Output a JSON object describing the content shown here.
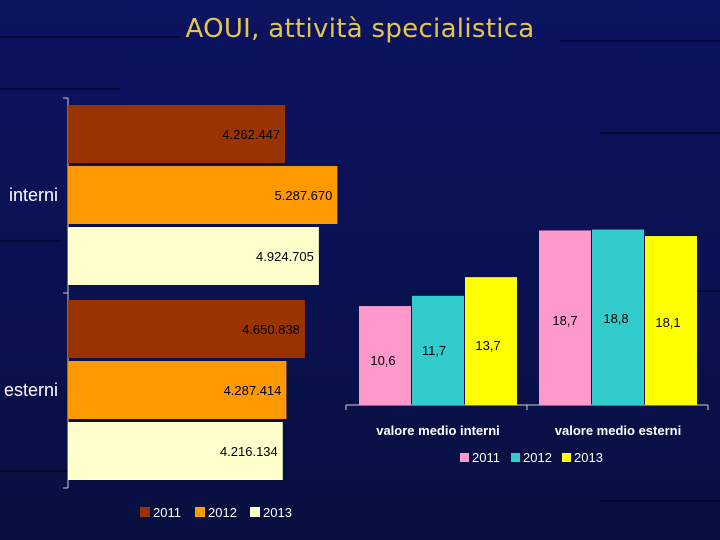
{
  "page": {
    "title": "AOUI, attività specialistica"
  },
  "colors": {
    "c2011_left": "#993300",
    "c2012_left": "#ff9900",
    "c2013_left": "#ffffcc",
    "c2011_right": "#ff99cc",
    "c2012_right": "#33cccc",
    "c2013_right": "#ffff00"
  },
  "chart_data": [
    {
      "type": "bar",
      "orientation": "horizontal",
      "categories": [
        "interni",
        "esterni"
      ],
      "series": [
        {
          "name": "2011",
          "values": [
            4262447,
            4650838
          ],
          "labels": [
            "4.262.447",
            "4.650.838"
          ]
        },
        {
          "name": "2012",
          "values": [
            5287670,
            4287414
          ],
          "labels": [
            "5.287.670",
            "4.287.414"
          ]
        },
        {
          "name": "2013",
          "values": [
            4924705,
            4216134
          ],
          "labels": [
            "4.924.705",
            "4.216.134"
          ]
        }
      ],
      "xlim": [
        0,
        5300000
      ],
      "legend": "bottom",
      "grid": false
    },
    {
      "type": "bar",
      "orientation": "vertical",
      "categories": [
        "valore medio interni",
        "valore medio esterni"
      ],
      "series": [
        {
          "name": "2011",
          "values": [
            10.6,
            18.7
          ],
          "labels": [
            "10,6",
            "18,7"
          ]
        },
        {
          "name": "2012",
          "values": [
            11.7,
            18.8
          ],
          "labels": [
            "11,7",
            "18,8"
          ]
        },
        {
          "name": "2013",
          "values": [
            13.7,
            18.1
          ],
          "labels": [
            "13,7",
            "18,1"
          ]
        }
      ],
      "ylim": [
        0,
        19.5
      ],
      "legend": "bottom",
      "grid": false
    }
  ]
}
